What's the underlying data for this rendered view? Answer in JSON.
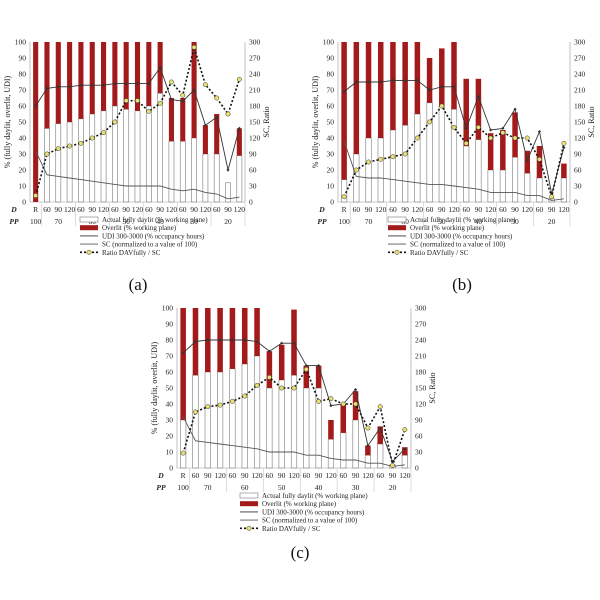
{
  "colors": {
    "daylit_fill": "#ffffff",
    "daylit_stroke": "#7a7a7a",
    "overlit_fill": "#a31a1a",
    "udi_line": "#333333",
    "sc_line": "#555555",
    "ratio_line": "#111111",
    "ratio_marker": "#e8e070"
  },
  "legend_labels": {
    "daylit": "Actual fully daylit (% working plane)",
    "overlit": "Overlit (% working plane)",
    "udi": "UDI 300-3000 (% occupancy hours)",
    "sc": "SC (normalized to a value of 100)",
    "ratio": "Ratio DAVfully / SC"
  },
  "row_labels": {
    "d": "D",
    "pp": "PP"
  },
  "chart_data": [
    {
      "type": "bar",
      "caption": "(a)",
      "ylabel": "% (fully daylit, overlit, UDI)",
      "y2label": "SC, Ratio",
      "ylim": [
        0,
        100
      ],
      "y2lim": [
        0,
        300
      ],
      "yticks": [
        "0",
        "10",
        "20",
        "30",
        "40",
        "50",
        "60",
        "70",
        "80",
        "90",
        "100"
      ],
      "y2ticks": [
        "0",
        "30",
        "60",
        "90",
        "120",
        "150",
        "180",
        "210",
        "240",
        "270",
        "300"
      ],
      "categories": [
        "R",
        "60",
        "90",
        "120",
        "60",
        "90",
        "120",
        "60",
        "90",
        "120",
        "60",
        "90",
        "120",
        "60",
        "90",
        "120",
        "60",
        "90",
        "120"
      ],
      "pp_groups": [
        {
          "label": "100",
          "start": 0,
          "end": 0
        },
        {
          "label": "70",
          "start": 1,
          "end": 3
        },
        {
          "label": "60",
          "start": 4,
          "end": 6
        },
        {
          "label": "50",
          "start": 7,
          "end": 9
        },
        {
          "label": "40",
          "start": 10,
          "end": 12
        },
        {
          "label": "30",
          "start": 13,
          "end": 15
        },
        {
          "label": "20",
          "start": 16,
          "end": 18
        }
      ],
      "daylit": [
        0,
        46,
        49,
        50,
        52,
        55,
        57,
        60,
        58,
        57,
        60,
        68,
        38,
        38,
        40,
        30,
        30,
        12,
        29
      ],
      "overlit": [
        100,
        54,
        51,
        50,
        48,
        45,
        43,
        40,
        42,
        43,
        40,
        32,
        27,
        27,
        60,
        18,
        25,
        0,
        17
      ],
      "udi": [
        60,
        71,
        72,
        72,
        73,
        73,
        73,
        74,
        74,
        74,
        74,
        84,
        64,
        63,
        70,
        48,
        53,
        20,
        46
      ],
      "sc": [
        32,
        17,
        16,
        15,
        14,
        13,
        12,
        11,
        10,
        10,
        10,
        10,
        8,
        7,
        8,
        6,
        5,
        2,
        3
      ],
      "ratio": [
        12,
        90,
        100,
        105,
        110,
        120,
        130,
        150,
        190,
        190,
        170,
        185,
        225,
        200,
        290,
        220,
        195,
        165,
        230
      ]
    },
    {
      "type": "bar",
      "caption": "(b)",
      "ylabel": "% (fully daylit, overlit, UDI)",
      "y2label": "SC, Ratio",
      "ylim": [
        0,
        100
      ],
      "y2lim": [
        0,
        300
      ],
      "yticks": [
        "0",
        "10",
        "20",
        "30",
        "40",
        "50",
        "60",
        "70",
        "80",
        "90",
        "100"
      ],
      "y2ticks": [
        "0",
        "30",
        "60",
        "90",
        "120",
        "150",
        "180",
        "210",
        "240",
        "270",
        "300"
      ],
      "categories": [
        "R",
        "60",
        "90",
        "120",
        "60",
        "90",
        "120",
        "60",
        "90",
        "120",
        "60",
        "90",
        "120",
        "60",
        "90",
        "120",
        "60",
        "90",
        "120"
      ],
      "pp_groups": [
        {
          "label": "100",
          "start": 0,
          "end": 0
        },
        {
          "label": "70",
          "start": 1,
          "end": 3
        },
        {
          "label": "60",
          "start": 4,
          "end": 6
        },
        {
          "label": "50",
          "start": 7,
          "end": 9
        },
        {
          "label": "40",
          "start": 10,
          "end": 12
        },
        {
          "label": "30",
          "start": 13,
          "end": 15
        },
        {
          "label": "20",
          "start": 16,
          "end": 18
        }
      ],
      "daylit": [
        14,
        30,
        40,
        40,
        45,
        48,
        55,
        62,
        60,
        58,
        35,
        39,
        20,
        20,
        28,
        18,
        15,
        2,
        15
      ],
      "overlit": [
        86,
        70,
        60,
        60,
        55,
        52,
        45,
        28,
        36,
        42,
        42,
        38,
        23,
        25,
        28,
        14,
        20,
        0,
        9
      ],
      "udi": [
        69,
        75,
        75,
        75,
        76,
        76,
        76,
        70,
        72,
        72,
        46,
        66,
        45,
        46,
        58,
        26,
        44,
        5,
        34
      ],
      "sc": [
        38,
        16,
        15,
        15,
        14,
        13,
        12,
        11,
        11,
        10,
        9,
        8,
        6,
        6,
        6,
        4,
        4,
        1,
        2
      ],
      "ratio": [
        10,
        60,
        75,
        80,
        85,
        90,
        120,
        150,
        180,
        140,
        110,
        140,
        120,
        130,
        120,
        120,
        80,
        10,
        110
      ]
    },
    {
      "type": "bar",
      "caption": "(c)",
      "ylabel": "% (fully daylit, overlit, UDI)",
      "y2label": "SC, Ratio",
      "ylim": [
        0,
        100
      ],
      "y2lim": [
        0,
        300
      ],
      "yticks": [
        "0",
        "10",
        "20",
        "30",
        "40",
        "50",
        "60",
        "70",
        "80",
        "90",
        "100"
      ],
      "y2ticks": [
        "0",
        "30",
        "60",
        "90",
        "120",
        "150",
        "180",
        "210",
        "240",
        "270",
        "300"
      ],
      "categories": [
        "R",
        "60",
        "90",
        "120",
        "60",
        "90",
        "120",
        "60",
        "90",
        "120",
        "60",
        "90",
        "120",
        "60",
        "90",
        "120",
        "60",
        "90",
        "120"
      ],
      "pp_groups": [
        {
          "label": "100",
          "start": 0,
          "end": 0
        },
        {
          "label": "70",
          "start": 1,
          "end": 3
        },
        {
          "label": "60",
          "start": 4,
          "end": 6
        },
        {
          "label": "50",
          "start": 7,
          "end": 9
        },
        {
          "label": "40",
          "start": 10,
          "end": 12
        },
        {
          "label": "30",
          "start": 13,
          "end": 15
        },
        {
          "label": "20",
          "start": 16,
          "end": 18
        }
      ],
      "daylit": [
        30,
        58,
        60,
        60,
        62,
        65,
        70,
        50,
        55,
        58,
        50,
        50,
        18,
        22,
        30,
        8,
        15,
        2,
        8
      ],
      "overlit": [
        70,
        42,
        40,
        40,
        38,
        35,
        30,
        23,
        22,
        41,
        14,
        14,
        12,
        18,
        18,
        6,
        11,
        0,
        5
      ],
      "udi": [
        72,
        79,
        80,
        80,
        80,
        80,
        79,
        73,
        78,
        78,
        64,
        64,
        39,
        40,
        49,
        14,
        25,
        4,
        12
      ],
      "sc": [
        32,
        17,
        16,
        15,
        14,
        13,
        12,
        10,
        10,
        10,
        8,
        8,
        6,
        5,
        5,
        3,
        3,
        1,
        2
      ],
      "ratio": [
        28,
        105,
        115,
        118,
        125,
        135,
        155,
        170,
        150,
        150,
        185,
        125,
        130,
        120,
        120,
        75,
        115,
        5,
        72
      ]
    }
  ]
}
